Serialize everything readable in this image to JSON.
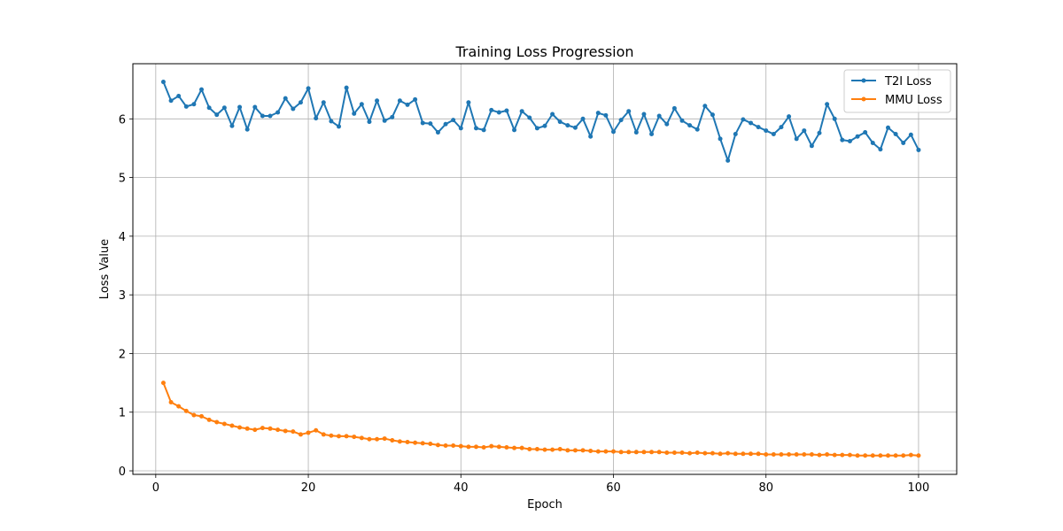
{
  "chart_data": {
    "type": "line",
    "title": "Training Loss Progression",
    "xlabel": "Epoch",
    "ylabel": "Loss Value",
    "xlim": [
      -3,
      105
    ],
    "ylim": [
      -0.06,
      6.94
    ],
    "xticks": [
      0,
      20,
      40,
      60,
      80,
      100
    ],
    "yticks": [
      0,
      1,
      2,
      3,
      4,
      5,
      6
    ],
    "grid": true,
    "legend_position": "top-right",
    "series": [
      {
        "name": "T2I Loss",
        "color": "#1f77b4",
        "marker": "circle",
        "x": [
          1,
          2,
          3,
          4,
          5,
          6,
          7,
          8,
          9,
          10,
          11,
          12,
          13,
          14,
          15,
          16,
          17,
          18,
          19,
          20,
          21,
          22,
          23,
          24,
          25,
          26,
          27,
          28,
          29,
          30,
          31,
          32,
          33,
          34,
          35,
          36,
          37,
          38,
          39,
          40,
          41,
          42,
          43,
          44,
          45,
          46,
          47,
          48,
          49,
          50,
          51,
          52,
          53,
          54,
          55,
          56,
          57,
          58,
          59,
          60,
          61,
          62,
          63,
          64,
          65,
          66,
          67,
          68,
          69,
          70,
          71,
          72,
          73,
          74,
          75,
          76,
          77,
          78,
          79,
          80,
          81,
          82,
          83,
          84,
          85,
          86,
          87,
          88,
          89,
          90,
          91,
          92,
          93,
          94,
          95,
          96,
          97,
          98,
          99,
          100
        ],
        "values": [
          6.63,
          6.31,
          6.39,
          6.21,
          6.25,
          6.5,
          6.19,
          6.07,
          6.19,
          5.88,
          6.2,
          5.82,
          6.2,
          6.05,
          6.05,
          6.11,
          6.35,
          6.17,
          6.28,
          6.52,
          6.01,
          6.28,
          5.96,
          5.87,
          6.53,
          6.09,
          6.25,
          5.95,
          6.31,
          5.97,
          6.03,
          6.31,
          6.24,
          6.33,
          5.93,
          5.92,
          5.77,
          5.91,
          5.98,
          5.84,
          6.28,
          5.84,
          5.81,
          6.15,
          6.11,
          6.14,
          5.81,
          6.13,
          6.02,
          5.84,
          5.88,
          6.08,
          5.95,
          5.89,
          5.85,
          6.0,
          5.7,
          6.1,
          6.06,
          5.78,
          5.98,
          6.13,
          5.77,
          6.08,
          5.74,
          6.05,
          5.91,
          6.18,
          5.97,
          5.89,
          5.82,
          6.22,
          6.07,
          5.66,
          5.29,
          5.74,
          5.99,
          5.93,
          5.86,
          5.8,
          5.74,
          5.86,
          6.04,
          5.66,
          5.8,
          5.54,
          5.76,
          6.25,
          6.0,
          5.64,
          5.62,
          5.7,
          5.77,
          5.59,
          5.48,
          5.85,
          5.74,
          5.59,
          5.73,
          5.47
        ]
      },
      {
        "name": "MMU Loss",
        "color": "#ff7f0e",
        "marker": "circle",
        "x": [
          1,
          2,
          3,
          4,
          5,
          6,
          7,
          8,
          9,
          10,
          11,
          12,
          13,
          14,
          15,
          16,
          17,
          18,
          19,
          20,
          21,
          22,
          23,
          24,
          25,
          26,
          27,
          28,
          29,
          30,
          31,
          32,
          33,
          34,
          35,
          36,
          37,
          38,
          39,
          40,
          41,
          42,
          43,
          44,
          45,
          46,
          47,
          48,
          49,
          50,
          51,
          52,
          53,
          54,
          55,
          56,
          57,
          58,
          59,
          60,
          61,
          62,
          63,
          64,
          65,
          66,
          67,
          68,
          69,
          70,
          71,
          72,
          73,
          74,
          75,
          76,
          77,
          78,
          79,
          80,
          81,
          82,
          83,
          84,
          85,
          86,
          87,
          88,
          89,
          90,
          91,
          92,
          93,
          94,
          95,
          96,
          97,
          98,
          99,
          100
        ],
        "values": [
          1.5,
          1.17,
          1.1,
          1.02,
          0.95,
          0.93,
          0.87,
          0.83,
          0.8,
          0.77,
          0.74,
          0.72,
          0.7,
          0.73,
          0.72,
          0.7,
          0.68,
          0.67,
          0.62,
          0.65,
          0.69,
          0.62,
          0.6,
          0.59,
          0.59,
          0.58,
          0.56,
          0.54,
          0.54,
          0.55,
          0.52,
          0.5,
          0.49,
          0.48,
          0.47,
          0.46,
          0.44,
          0.43,
          0.43,
          0.42,
          0.41,
          0.41,
          0.4,
          0.42,
          0.41,
          0.4,
          0.39,
          0.39,
          0.37,
          0.37,
          0.36,
          0.36,
          0.37,
          0.35,
          0.35,
          0.35,
          0.34,
          0.33,
          0.33,
          0.33,
          0.32,
          0.32,
          0.32,
          0.32,
          0.32,
          0.32,
          0.31,
          0.31,
          0.31,
          0.3,
          0.31,
          0.3,
          0.3,
          0.29,
          0.3,
          0.29,
          0.29,
          0.29,
          0.29,
          0.28,
          0.28,
          0.28,
          0.28,
          0.28,
          0.28,
          0.28,
          0.27,
          0.28,
          0.27,
          0.27,
          0.27,
          0.26,
          0.26,
          0.26,
          0.26,
          0.26,
          0.26,
          0.26,
          0.27,
          0.26
        ]
      }
    ]
  }
}
